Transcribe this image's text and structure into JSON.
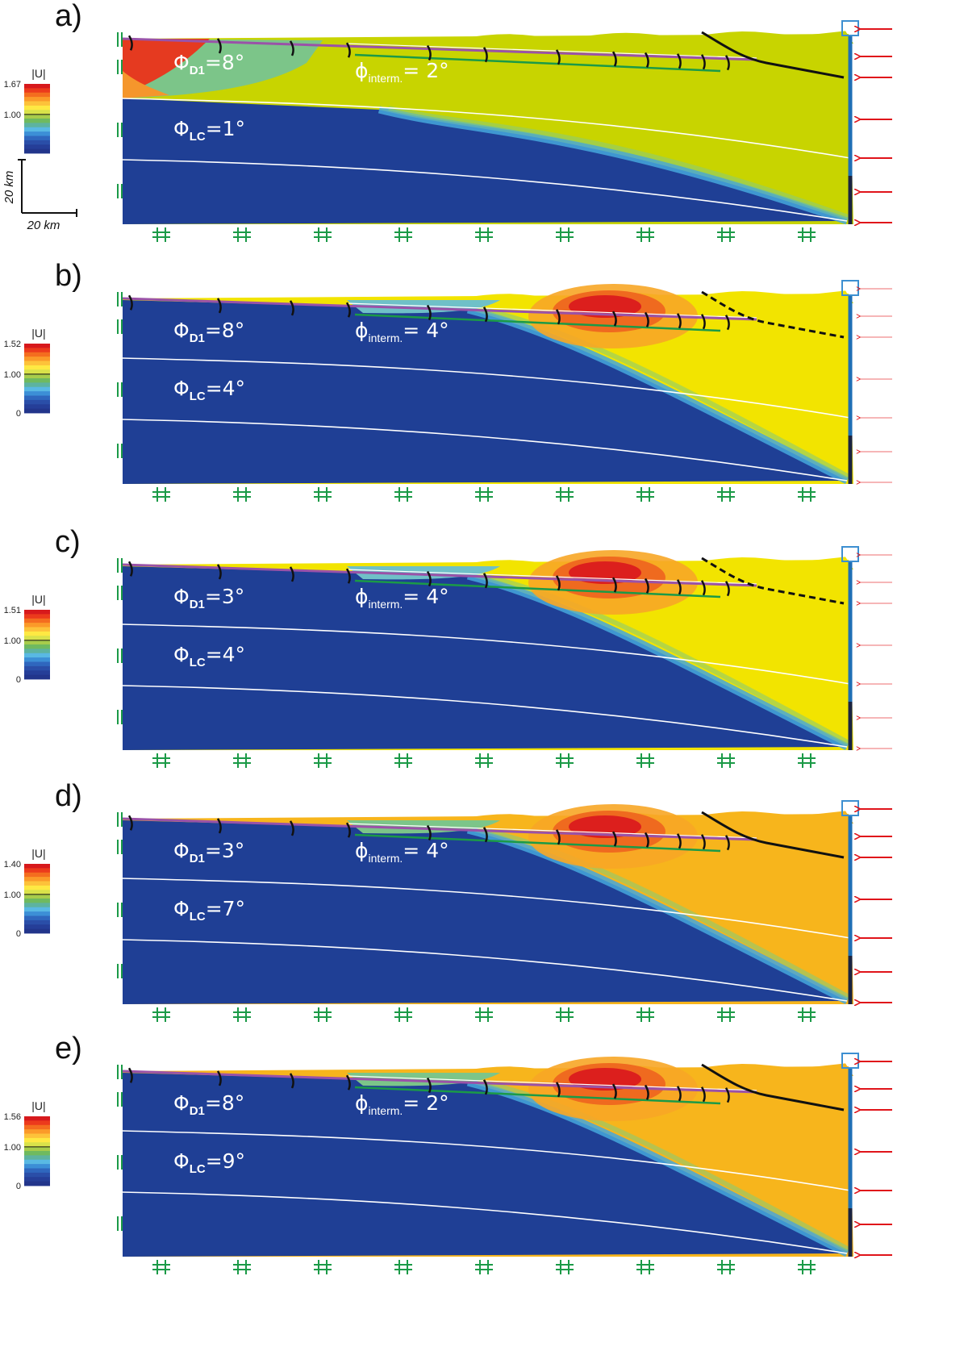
{
  "figure": {
    "colorbar_colors": [
      "#d7191c",
      "#ec3a1c",
      "#f46d1f",
      "#fb9a29",
      "#fdc23a",
      "#fee943",
      "#d9e24a",
      "#a7cc4b",
      "#6fba5f",
      "#5db3a0",
      "#59b9e3",
      "#3c8fd6",
      "#2f67be",
      "#2a4ea8",
      "#253e98",
      "#22358b"
    ],
    "scale_bar": {
      "vertical_label": "20 km",
      "horizontal_label": "20 km"
    },
    "panels": [
      {
        "id": "a",
        "letter": "a)",
        "colorbar": {
          "title": "|U|",
          "max": "1.67",
          "mid": "1.00",
          "min": ""
        },
        "phi_d1": {
          "symbol": "Φ",
          "sub": "D1",
          "value": "=8°"
        },
        "phi_interm": {
          "symbol": "ϕ",
          "sub": "interm.",
          "value": "= 2°"
        },
        "phi_lc": {
          "symbol": "Φ",
          "sub": "LC",
          "value": "=1°"
        },
        "colors": {
          "wedge": "#c8d400",
          "basal": "#1f3f95",
          "upper_left": "#7cc589"
        }
      },
      {
        "id": "b",
        "letter": "b)",
        "colorbar": {
          "title": "|U|",
          "max": "1.52",
          "mid": "1.00",
          "min": "0"
        },
        "phi_d1": {
          "symbol": "Φ",
          "sub": "D1",
          "value": "=8°"
        },
        "phi_interm": {
          "symbol": "ϕ",
          "sub": "interm.",
          "value": "= 4°"
        },
        "phi_lc": {
          "symbol": "Φ",
          "sub": "LC",
          "value": "=4°"
        },
        "colors": {
          "wedge": "#f2e400",
          "basal": "#1f3f95",
          "upper_left": "#6fc0c8"
        }
      },
      {
        "id": "c",
        "letter": "c)",
        "colorbar": {
          "title": "|U|",
          "max": "1.51",
          "mid": "1.00",
          "min": "0"
        },
        "phi_d1": {
          "symbol": "Φ",
          "sub": "D1",
          "value": "=3°"
        },
        "phi_interm": {
          "symbol": "ϕ",
          "sub": "interm.",
          "value": "= 4°"
        },
        "phi_lc": {
          "symbol": "Φ",
          "sub": "LC",
          "value": "=4°"
        },
        "colors": {
          "wedge": "#f2e400",
          "basal": "#1f3f95",
          "upper_left": "#6fc0c8"
        }
      },
      {
        "id": "d",
        "letter": "d)",
        "colorbar": {
          "title": "|U|",
          "max": "1.40",
          "mid": "1.00",
          "min": "0"
        },
        "phi_d1": {
          "symbol": "Φ",
          "sub": "D1",
          "value": "=3°"
        },
        "phi_interm": {
          "symbol": "ϕ",
          "sub": "interm.",
          "value": "= 4°"
        },
        "phi_lc": {
          "symbol": "Φ",
          "sub": "LC",
          "value": "=7°"
        },
        "colors": {
          "wedge": "#f7b51c",
          "basal": "#1f3f95",
          "upper_left": "#7cc589"
        }
      },
      {
        "id": "e",
        "letter": "e)",
        "colorbar": {
          "title": "|U|",
          "max": "1.56",
          "mid": "1.00",
          "min": "0"
        },
        "phi_d1": {
          "symbol": "Φ",
          "sub": "D1",
          "value": "=8°"
        },
        "phi_interm": {
          "symbol": "ϕ",
          "sub": "interm.",
          "value": "= 2°"
        },
        "phi_lc": {
          "symbol": "Φ",
          "sub": "LC",
          "value": "=9°"
        },
        "colors": {
          "wedge": "#f7b51c",
          "basal": "#1f3f95",
          "upper_left": "#7cc589"
        }
      }
    ]
  }
}
